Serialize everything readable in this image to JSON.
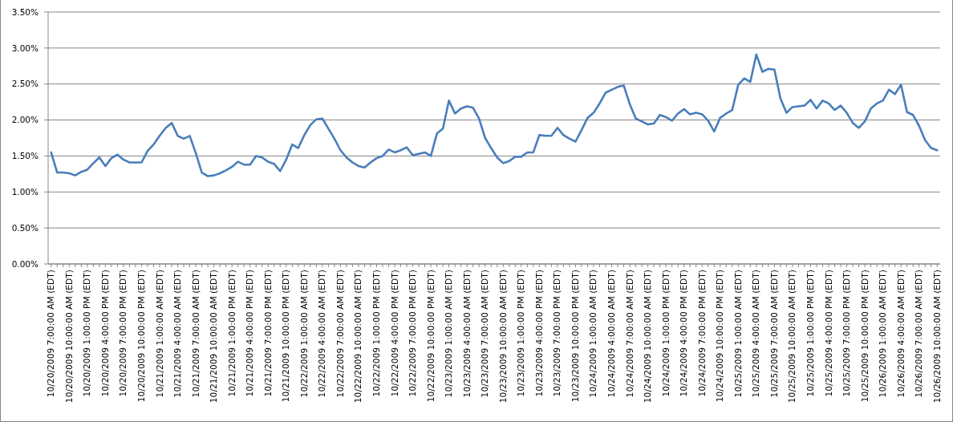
{
  "chart_data": {
    "type": "line",
    "categories": [
      "10/20/2009 7:00:00 AM (EDT)",
      null,
      null,
      "10/20/2009 10:00:00 AM (EDT)",
      null,
      null,
      "10/20/2009 1:00:00 PM (EDT)",
      null,
      null,
      "10/20/2009 4:00:00 PM (EDT)",
      null,
      null,
      "10/20/2009 7:00:00 PM (EDT)",
      null,
      null,
      "10/20/2009 10:00:00 PM (EDT)",
      null,
      null,
      "10/21/2009 1:00:00 AM (EDT)",
      null,
      null,
      "10/21/2009 4:00:00 AM (EDT)",
      null,
      null,
      "10/21/2009 7:00:00 AM (EDT)",
      null,
      null,
      "10/21/2009 10:00:00 AM (EDT)",
      null,
      null,
      "10/21/2009 1:00:00 PM (EDT)",
      null,
      null,
      "10/21/2009 4:00:00 PM (EDT)",
      null,
      null,
      "10/21/2009 7:00:00 PM (EDT)",
      null,
      null,
      "10/21/2009 10:00:00 PM (EDT)",
      null,
      null,
      "10/22/2009 1:00:00 AM (EDT)",
      null,
      null,
      "10/22/2009 4:00:00 AM (EDT)",
      null,
      null,
      "10/22/2009 7:00:00 AM (EDT)",
      null,
      null,
      "10/22/2009 10:00:00 AM (EDT)",
      null,
      null,
      "10/22/2009 1:00:00 PM (EDT)",
      null,
      null,
      "10/22/2009 4:00:00 PM (EDT)",
      null,
      null,
      "10/22/2009 7:00:00 PM (EDT)",
      null,
      null,
      "10/22/2009 10:00:00 PM (EDT)",
      null,
      null,
      "10/23/2009 1:00:00 AM (EDT)",
      null,
      null,
      "10/23/2009 4:00:00 AM (EDT)",
      null,
      null,
      "10/23/2009 7:00:00 AM (EDT)",
      null,
      null,
      "10/23/2009 10:00:00 AM (EDT)",
      null,
      null,
      "10/23/2009 1:00:00 PM (EDT)",
      null,
      null,
      "10/23/2009 4:00:00 PM (EDT)",
      null,
      null,
      "10/23/2009 7:00:00 PM (EDT)",
      null,
      null,
      "10/23/2009 10:00:00 PM (EDT)",
      null,
      null,
      "10/24/2009 1:00:00 AM (EDT)",
      null,
      null,
      "10/24/2009 4:00:00 AM (EDT)",
      null,
      null,
      "10/24/2009 7:00:00 AM (EDT)",
      null,
      null,
      "10/24/2009 10:00:00 AM (EDT)",
      null,
      null,
      "10/24/2009 1:00:00 PM (EDT)",
      null,
      null,
      "10/24/2009 4:00:00 PM (EDT)",
      null,
      null,
      "10/24/2009 7:00:00 PM (EDT)",
      null,
      null,
      "10/24/2009 10:00:00 PM (EDT)",
      null,
      null,
      "10/25/2009 1:00:00 AM (EDT)",
      null,
      null,
      "10/25/2009 4:00:00 AM (EDT)",
      null,
      null,
      "10/25/2009 7:00:00 AM (EDT)",
      null,
      null,
      "10/25/2009 10:00:00 AM (EDT)",
      null,
      null,
      "10/25/2009 1:00:00 PM (EDT)",
      null,
      null,
      "10/25/2009 4:00:00 PM (EDT)",
      null,
      null,
      "10/25/2009 7:00:00 PM (EDT)",
      null,
      null,
      "10/25/2009 10:00:00 PM (EDT)",
      null,
      null,
      "10/26/2009 1:00:00 AM (EDT)",
      null,
      null,
      "10/26/2009 4:00:00 AM (EDT)",
      null,
      null,
      "10/26/2009 7:00:00 AM (EDT)",
      null,
      null,
      "10/26/2009 10:00:00 AM (EDT)"
    ],
    "series": [
      {
        "color": "#4a7ebb",
        "values": [
          1.55,
          1.27,
          1.27,
          1.26,
          1.23,
          1.28,
          1.31,
          1.4,
          1.48,
          1.36,
          1.47,
          1.52,
          1.45,
          1.41,
          1.41,
          1.41,
          1.57,
          1.66,
          1.78,
          1.89,
          1.96,
          1.78,
          1.74,
          1.78,
          1.54,
          1.27,
          1.22,
          1.23,
          1.26,
          1.3,
          1.35,
          1.42,
          1.38,
          1.38,
          1.5,
          1.48,
          1.42,
          1.39,
          1.29,
          1.45,
          1.66,
          1.61,
          1.79,
          1.93,
          2.01,
          2.02,
          1.88,
          1.74,
          1.58,
          1.48,
          1.41,
          1.36,
          1.34,
          1.41,
          1.47,
          1.5,
          1.59,
          1.55,
          1.58,
          1.62,
          1.51,
          1.53,
          1.55,
          1.5,
          1.81,
          1.88,
          2.27,
          2.09,
          2.16,
          2.19,
          2.17,
          2.02,
          1.75,
          1.61,
          1.48,
          1.4,
          1.43,
          1.49,
          1.49,
          1.55,
          1.55,
          1.79,
          1.78,
          1.78,
          1.89,
          1.79,
          1.74,
          1.7,
          1.86,
          2.03,
          2.1,
          2.23,
          2.38,
          2.42,
          2.46,
          2.48,
          2.22,
          2.02,
          1.98,
          1.94,
          1.95,
          2.07,
          2.04,
          1.99,
          2.09,
          2.15,
          2.08,
          2.1,
          2.08,
          1.99,
          1.84,
          2.03,
          2.09,
          2.14,
          2.49,
          2.58,
          2.53,
          2.91,
          2.67,
          2.71,
          2.7,
          2.3,
          2.1,
          2.18,
          2.19,
          2.2,
          2.28,
          2.16,
          2.27,
          2.23,
          2.14,
          2.2,
          2.1,
          1.96,
          1.89,
          1.98,
          2.16,
          2.23,
          2.27,
          2.42,
          2.36,
          2.49,
          2.11,
          2.07,
          1.92,
          1.72,
          1.61,
          1.58
        ]
      }
    ],
    "ylim": [
      0,
      3.5
    ],
    "yticks": [
      {
        "value": 0,
        "label": "0.00%"
      },
      {
        "value": 0.5,
        "label": "0.50%"
      },
      {
        "value": 1,
        "label": "1.00%"
      },
      {
        "value": 1.5,
        "label": "1.50%"
      },
      {
        "value": 2,
        "label": "2.00%"
      },
      {
        "value": 2.5,
        "label": "2.50%"
      },
      {
        "value": 3,
        "label": "3.00%"
      },
      {
        "value": 3.5,
        "label": "3.50%"
      }
    ],
    "grid": "y"
  }
}
